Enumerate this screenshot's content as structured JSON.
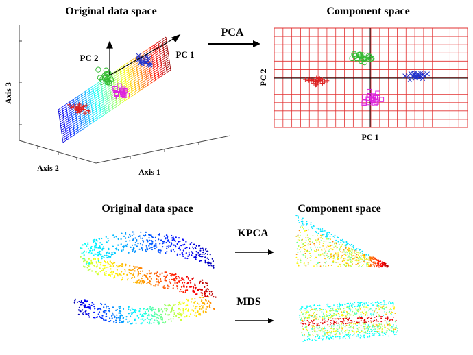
{
  "top": {
    "left_title": "Original data space",
    "right_title": "Component space",
    "method": "PCA",
    "axis_labels": {
      "axis1": "Axis 1",
      "axis2": "Axis 2",
      "axis3": "Axis 3"
    },
    "pc_labels": {
      "pc1": "PC 1",
      "pc2": "PC 2"
    },
    "component_axes": {
      "x": "PC 1",
      "y": "PC 2"
    }
  },
  "bottom": {
    "left_title": "Original data space",
    "right_title": "Component space",
    "methods": [
      "KPCA",
      "MDS"
    ]
  },
  "colors": {
    "cluster_red": "#dd2222",
    "cluster_green": "#33bb33",
    "cluster_blue": "#2233cc",
    "cluster_magenta": "#dd22dd",
    "grid_red": "#e23030"
  }
}
